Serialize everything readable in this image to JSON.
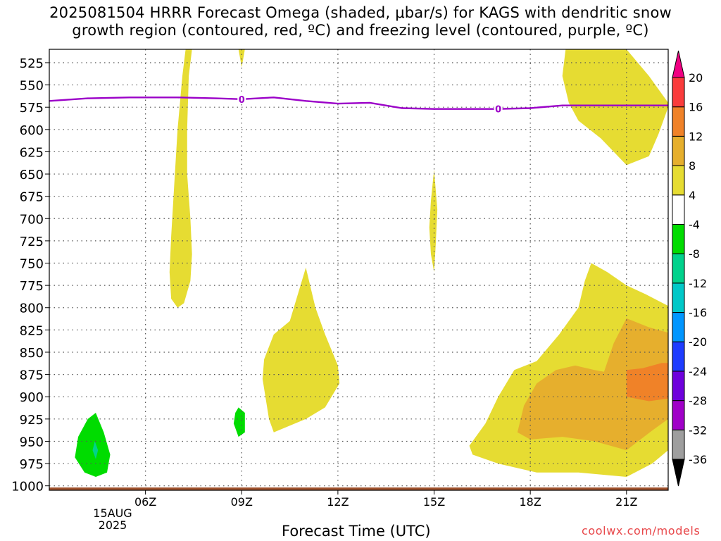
{
  "title_lines": [
    "2025081504 HRRR Forecast Omega (shaded, μbar/s) for KAGS with dendritic snow",
    "growth region (contoured, red, ºC) and freezing level (contoured, purple, ºC)"
  ],
  "credit": "coolwx.com/models",
  "chart_data": {
    "type": "heatmap",
    "xlabel": "Forecast Time (UTC)",
    "ylabel": "",
    "x_axis": {
      "range_hours": [
        3,
        22.3
      ],
      "ticks": [
        {
          "hour": 6,
          "label": "06Z"
        },
        {
          "hour": 9,
          "label": "09Z"
        },
        {
          "hour": 12,
          "label": "12Z"
        },
        {
          "hour": 15,
          "label": "15Z"
        },
        {
          "hour": 18,
          "label": "18Z"
        },
        {
          "hour": 21,
          "label": "21Z"
        }
      ],
      "date_label": [
        "15AUG",
        "2025"
      ]
    },
    "y_axis": {
      "range_hPa": [
        510,
        1005
      ],
      "ticks": [
        525,
        550,
        575,
        600,
        625,
        650,
        675,
        700,
        725,
        750,
        775,
        800,
        825,
        850,
        875,
        900,
        925,
        950,
        975,
        1000
      ],
      "grid": true
    },
    "freezing_level": {
      "color": "#9b00c8",
      "label": "0",
      "points": [
        [
          3,
          568
        ],
        [
          4.2,
          565
        ],
        [
          5.5,
          564
        ],
        [
          7,
          564
        ],
        [
          8.2,
          565
        ],
        [
          9,
          566
        ],
        [
          10,
          564
        ],
        [
          11,
          568
        ],
        [
          12,
          571
        ],
        [
          13,
          570
        ],
        [
          14,
          576
        ],
        [
          15,
          577
        ],
        [
          16,
          577
        ],
        [
          17,
          577
        ],
        [
          18,
          576
        ],
        [
          19,
          573
        ],
        [
          20,
          573
        ],
        [
          21,
          573
        ],
        [
          22.3,
          573
        ]
      ],
      "label_hours": [
        9,
        17
      ]
    },
    "ground": {
      "color": "#a0522d",
      "pressure_hPa": 1005
    },
    "colorbar": {
      "labels": [
        "20",
        "16",
        "12",
        "8",
        "4",
        "-4",
        "-8",
        "-12",
        "-16",
        "-20",
        "-24",
        "-28",
        "-32",
        "-36"
      ],
      "bins": [
        {
          "color": "#000000"
        },
        {
          "color": "#9e9e9e"
        },
        {
          "color": "#a000c8"
        },
        {
          "color": "#6e00dc"
        },
        {
          "color": "#1e3cff"
        },
        {
          "color": "#0096ff"
        },
        {
          "color": "#00c8c8"
        },
        {
          "color": "#00d28c"
        },
        {
          "color": "#00dc00"
        },
        {
          "color": "#ffffff"
        },
        {
          "color": "#e6dc32"
        },
        {
          "color": "#e6af2d"
        },
        {
          "color": "#f08228"
        },
        {
          "color": "#fa3c3c"
        },
        {
          "color": "#f00082"
        }
      ]
    },
    "shaded_regions": [
      {
        "level": "4 to 8",
        "color": "#e6dc32",
        "points": [
          [
            7.25,
            510
          ],
          [
            7.15,
            540
          ],
          [
            7.0,
            600
          ],
          [
            6.9,
            660
          ],
          [
            6.8,
            720
          ],
          [
            6.75,
            760
          ],
          [
            6.8,
            790
          ],
          [
            7.0,
            800
          ],
          [
            7.2,
            795
          ],
          [
            7.4,
            770
          ],
          [
            7.45,
            740
          ],
          [
            7.4,
            700
          ],
          [
            7.3,
            650
          ],
          [
            7.3,
            600
          ],
          [
            7.35,
            540
          ],
          [
            7.45,
            510
          ]
        ]
      },
      {
        "level": "4 to 8",
        "color": "#e6dc32",
        "points": [
          [
            8.9,
            510
          ],
          [
            9.1,
            510
          ],
          [
            9.0,
            530
          ]
        ]
      },
      {
        "level": "4 to 8",
        "color": "#e6dc32",
        "points": [
          [
            15.0,
            645
          ],
          [
            15.1,
            690
          ],
          [
            15.05,
            730
          ],
          [
            15.0,
            760
          ],
          [
            14.9,
            740
          ],
          [
            14.85,
            710
          ],
          [
            14.9,
            680
          ]
        ]
      },
      {
        "level": "4 to 8",
        "color": "#e6dc32",
        "points": [
          [
            11.0,
            755
          ],
          [
            11.3,
            800
          ],
          [
            11.6,
            830
          ],
          [
            12.0,
            865
          ],
          [
            12.05,
            885
          ],
          [
            11.6,
            912
          ],
          [
            11.0,
            925
          ],
          [
            10.0,
            940
          ],
          [
            9.85,
            925
          ],
          [
            9.65,
            880
          ],
          [
            9.7,
            858
          ],
          [
            10.0,
            830
          ],
          [
            10.5,
            815
          ]
        ]
      },
      {
        "level": "4 to 8",
        "color": "#e6dc32",
        "points": [
          [
            19.1,
            510
          ],
          [
            21.0,
            510
          ],
          [
            21.7,
            540
          ],
          [
            22.3,
            570
          ],
          [
            22.3,
            575
          ],
          [
            22.0,
            605
          ],
          [
            21.7,
            630
          ],
          [
            21.0,
            640
          ],
          [
            20.2,
            610
          ],
          [
            19.5,
            590
          ],
          [
            19.2,
            570
          ],
          [
            19.0,
            540
          ]
        ]
      },
      {
        "level": "4 to 8",
        "color": "#e6dc32",
        "points": [
          [
            19.9,
            750
          ],
          [
            20.4,
            760
          ],
          [
            21.0,
            775
          ],
          [
            21.6,
            785
          ],
          [
            22.3,
            798
          ],
          [
            22.3,
            960
          ],
          [
            21.8,
            975
          ],
          [
            21.0,
            990
          ],
          [
            19.5,
            985
          ],
          [
            18.2,
            985
          ],
          [
            17.0,
            975
          ],
          [
            16.2,
            965
          ],
          [
            16.1,
            955
          ],
          [
            16.6,
            930
          ],
          [
            17.0,
            900
          ],
          [
            17.5,
            870
          ],
          [
            18.2,
            860
          ],
          [
            18.9,
            830
          ],
          [
            19.5,
            800
          ],
          [
            19.7,
            770
          ]
        ]
      },
      {
        "level": "8 to 12",
        "color": "#e6af2d",
        "points": [
          [
            21.0,
            812
          ],
          [
            21.7,
            822
          ],
          [
            22.3,
            828
          ],
          [
            22.3,
            925
          ],
          [
            21.8,
            938
          ],
          [
            21.0,
            960
          ],
          [
            20.0,
            950
          ],
          [
            19.0,
            945
          ],
          [
            18.0,
            948
          ],
          [
            17.6,
            940
          ],
          [
            17.8,
            910
          ],
          [
            18.2,
            885
          ],
          [
            18.8,
            870
          ],
          [
            19.4,
            865
          ],
          [
            20.0,
            870
          ],
          [
            20.3,
            872
          ],
          [
            20.6,
            840
          ]
        ]
      },
      {
        "level": "12 to 16",
        "color": "#f08228",
        "points": [
          [
            21.0,
            870
          ],
          [
            21.5,
            868
          ],
          [
            22.1,
            862
          ],
          [
            22.3,
            862
          ],
          [
            22.3,
            902
          ],
          [
            21.7,
            905
          ],
          [
            21.0,
            900
          ]
        ]
      },
      {
        "level": "-8 to -4",
        "color": "#00dc00",
        "points": [
          [
            4.45,
            918
          ],
          [
            4.7,
            940
          ],
          [
            4.9,
            965
          ],
          [
            4.8,
            985
          ],
          [
            4.45,
            990
          ],
          [
            4.1,
            985
          ],
          [
            3.8,
            968
          ],
          [
            3.9,
            945
          ],
          [
            4.2,
            925
          ]
        ]
      },
      {
        "level": "-12 to -8",
        "color": "#00d28c",
        "points": [
          [
            4.42,
            950
          ],
          [
            4.52,
            960
          ],
          [
            4.45,
            970
          ],
          [
            4.35,
            960
          ]
        ]
      },
      {
        "level": "-8 to -4",
        "color": "#00dc00",
        "points": [
          [
            8.9,
            912
          ],
          [
            9.1,
            918
          ],
          [
            9.1,
            940
          ],
          [
            8.9,
            945
          ],
          [
            8.75,
            930
          ],
          [
            8.8,
            918
          ]
        ]
      }
    ]
  }
}
